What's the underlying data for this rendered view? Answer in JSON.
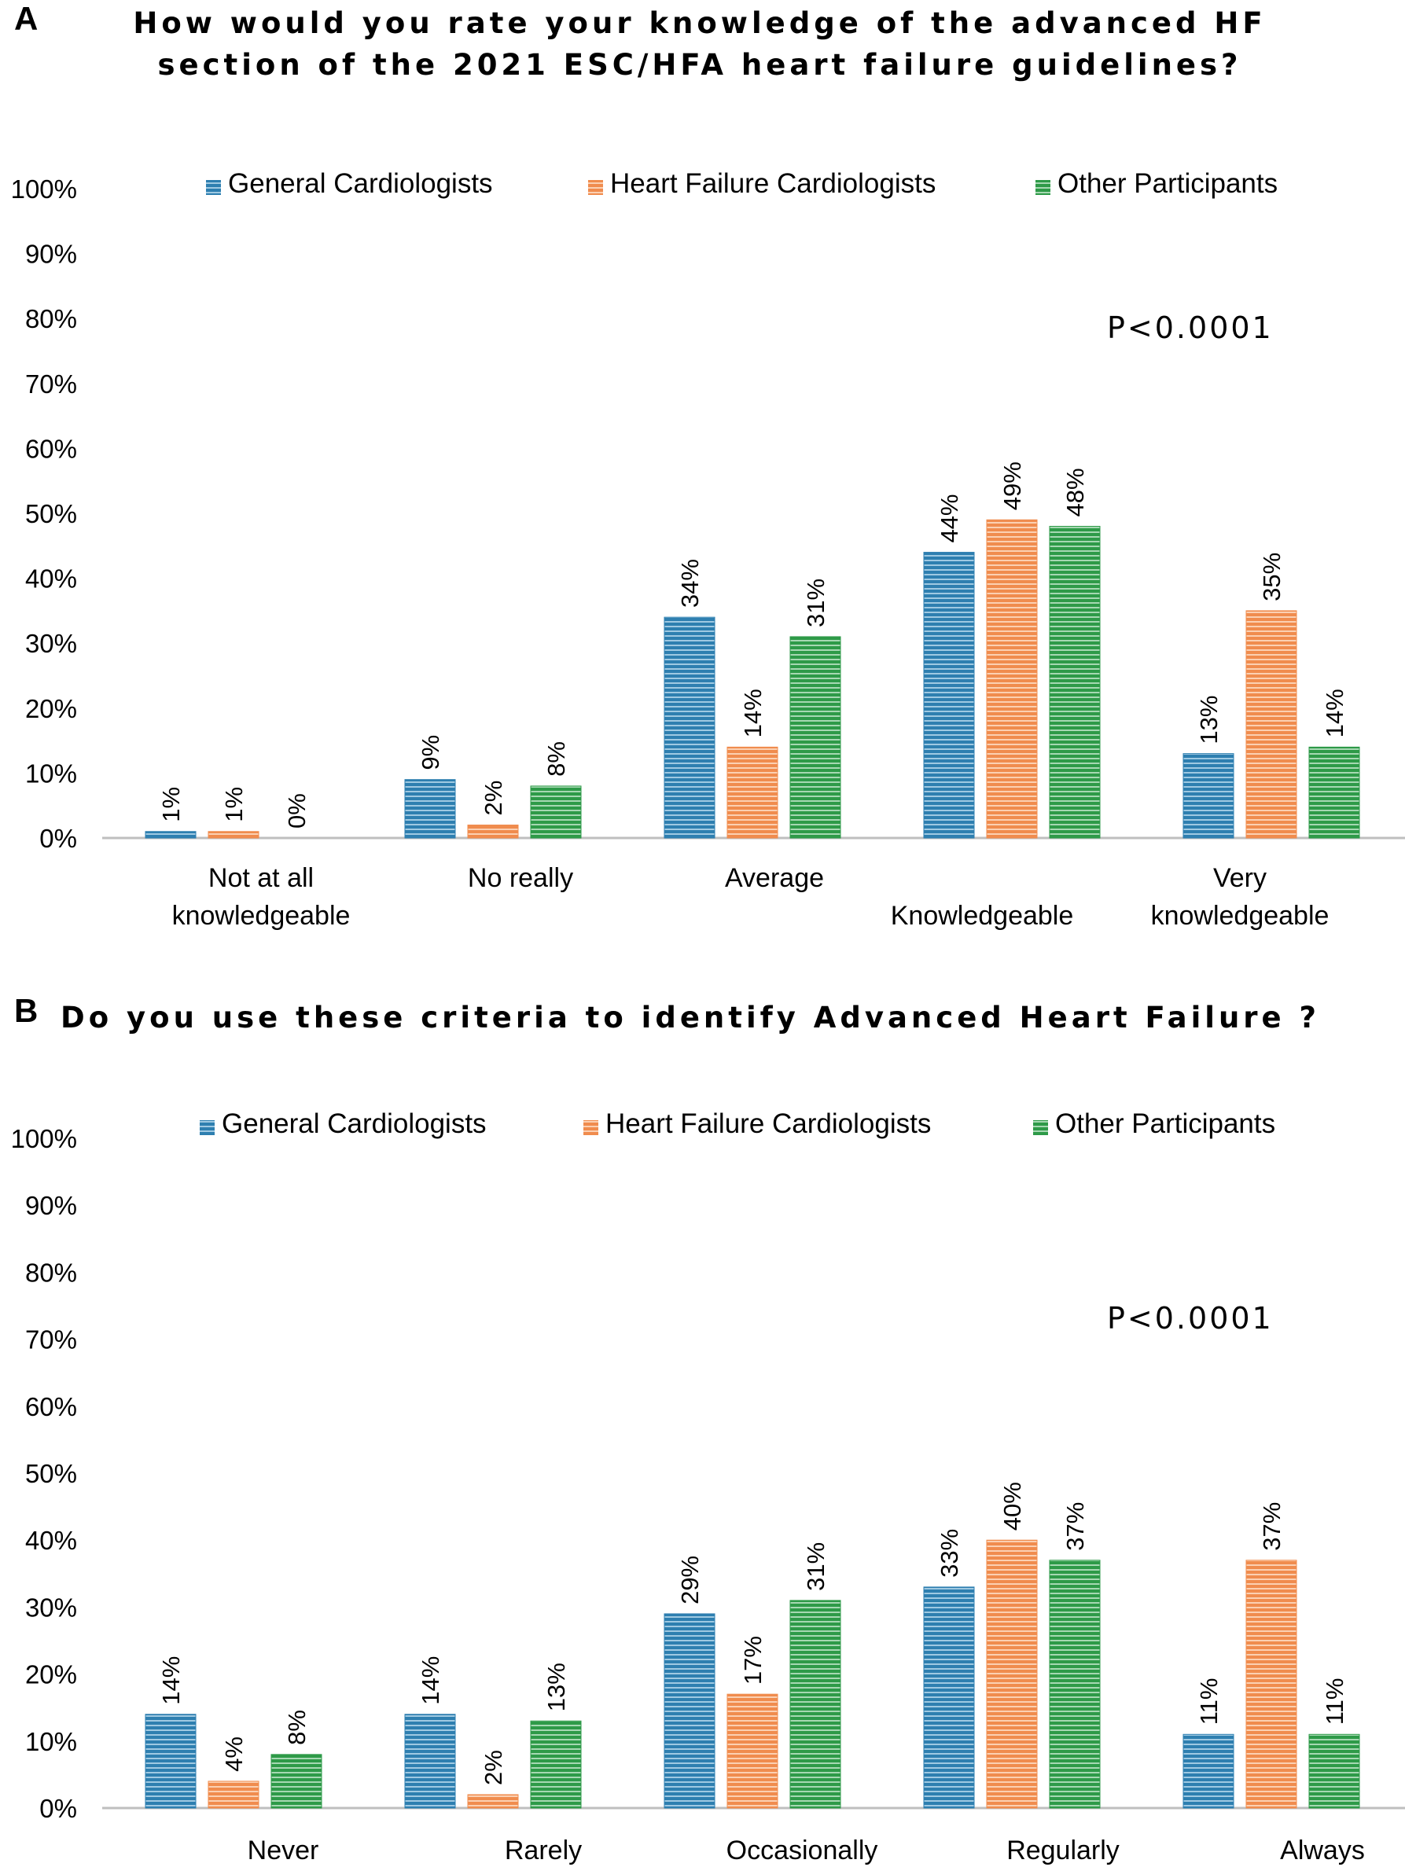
{
  "legend_colors": {
    "General Cardiologists": "#2e7fb0",
    "Heart Failure Cardiologists": "#f08c4e",
    "Other Participants": "#2e9a48"
  },
  "chart_data": [
    {
      "type": "bar",
      "panel": "A",
      "title": [
        "How would you rate your knowledge of the advanced HF",
        "section of the 2021 ESC/HFA heart failure guidelines?"
      ],
      "annotation": "P<0.0001",
      "categories": [
        [
          "Not at all",
          "knowledgeable"
        ],
        [
          "No really"
        ],
        [
          "Average"
        ],
        [
          "",
          "Knowledgeable"
        ],
        [
          "Very",
          "knowledgeable"
        ]
      ],
      "series": [
        {
          "name": "General Cardiologists",
          "values": [
            1,
            9,
            34,
            44,
            13
          ],
          "labels": [
            "1%",
            "9%",
            "34%",
            "44%",
            "13%"
          ]
        },
        {
          "name": "Heart Failure Cardiologists",
          "values": [
            1,
            2,
            14,
            49,
            35
          ],
          "labels": [
            "1%",
            "2%",
            "14%",
            "49%",
            "35%"
          ]
        },
        {
          "name": "Other Participants",
          "values": [
            0,
            8,
            31,
            48,
            14
          ],
          "labels": [
            "0%",
            "8%",
            "31%",
            "48%",
            "14%"
          ]
        }
      ],
      "ylim": [
        0,
        100
      ],
      "yticks": [
        "0%",
        "10%",
        "20%",
        "30%",
        "40%",
        "50%",
        "60%",
        "70%",
        "80%",
        "90%",
        "100%"
      ],
      "legend_position": "top",
      "grid": false
    },
    {
      "type": "bar",
      "panel": "B",
      "title": [
        "Do you use these criteria to identify Advanced Heart Failure ?"
      ],
      "annotation": "P<0.0001",
      "categories": [
        [
          "Never"
        ],
        [
          "Rarely"
        ],
        [
          "Occasionally"
        ],
        [
          "Regularly"
        ],
        [
          "Always"
        ]
      ],
      "series": [
        {
          "name": "General Cardiologists",
          "values": [
            14,
            14,
            29,
            33,
            11
          ],
          "labels": [
            "14%",
            "14%",
            "29%",
            "33%",
            "11%"
          ]
        },
        {
          "name": "Heart Failure Cardiologists",
          "values": [
            4,
            2,
            17,
            40,
            37
          ],
          "labels": [
            "4%",
            "2%",
            "17%",
            "40%",
            "37%"
          ]
        },
        {
          "name": "Other Participants",
          "values": [
            8,
            13,
            31,
            37,
            11
          ],
          "labels": [
            "8%",
            "13%",
            "31%",
            "37%",
            "11%"
          ]
        }
      ],
      "ylim": [
        0,
        100
      ],
      "yticks": [
        "0%",
        "10%",
        "20%",
        "30%",
        "40%",
        "50%",
        "60%",
        "70%",
        "80%",
        "90%",
        "100%"
      ],
      "legend_position": "top",
      "grid": false
    }
  ]
}
